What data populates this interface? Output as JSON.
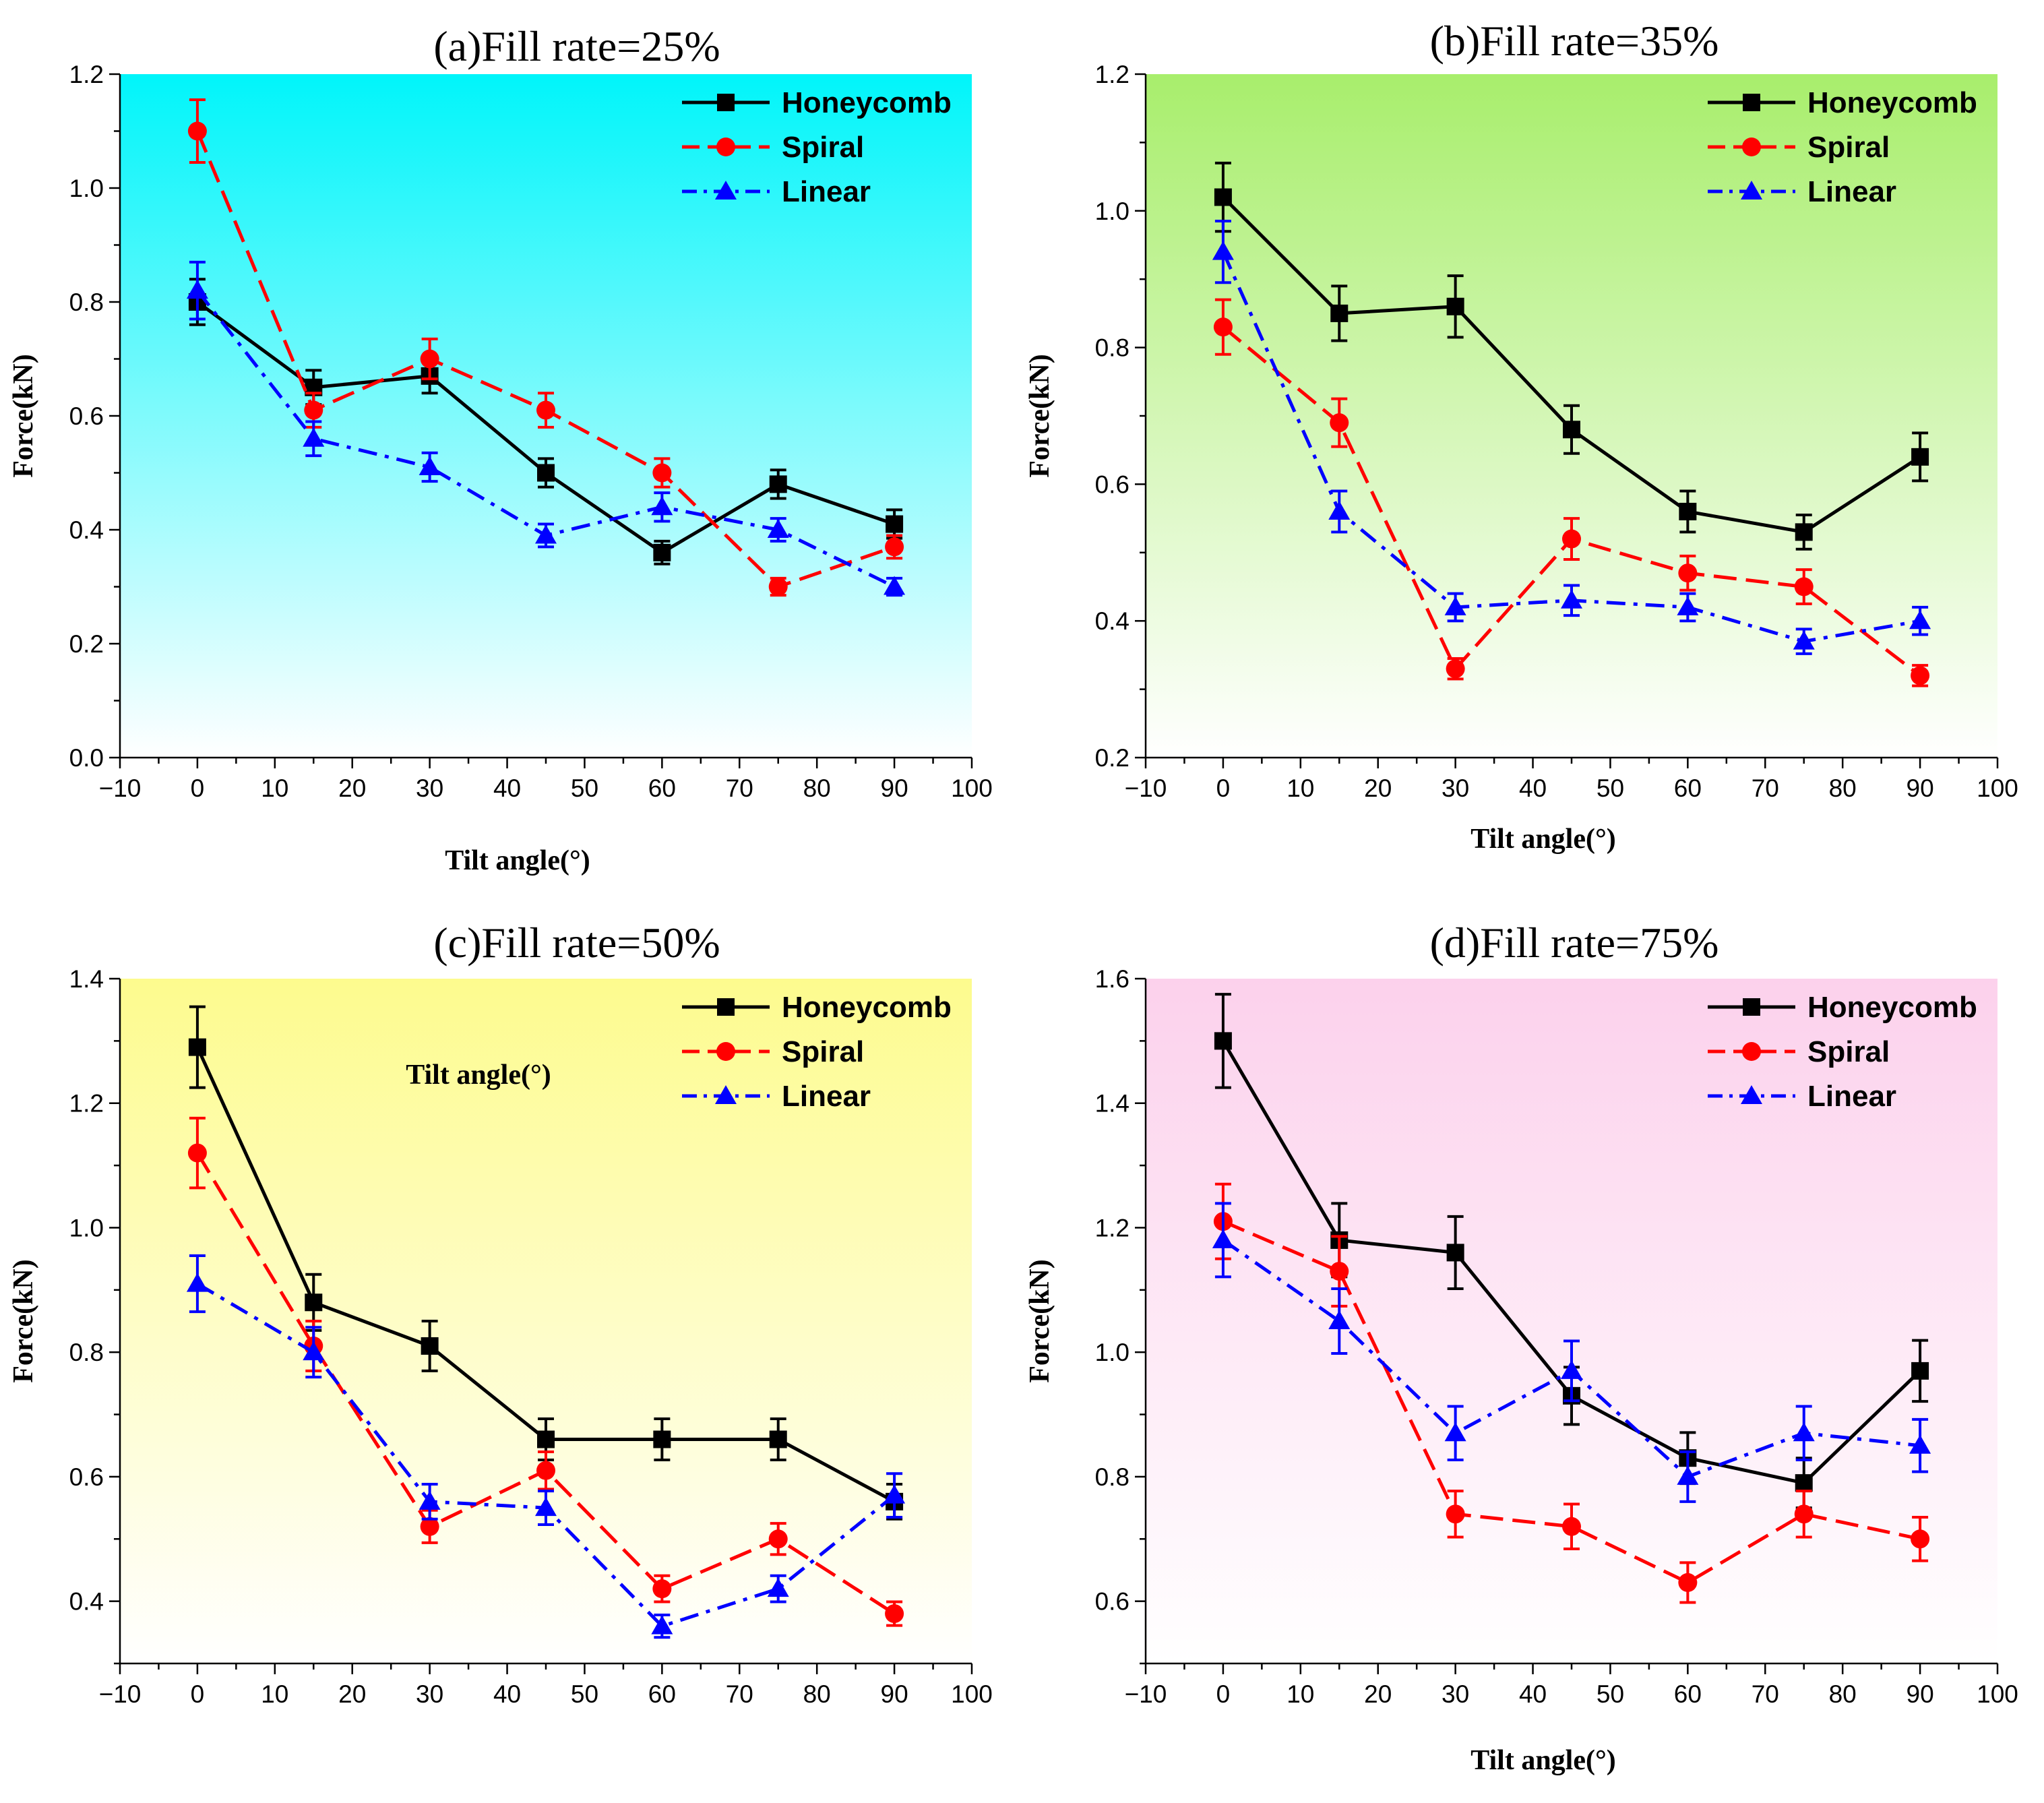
{
  "chart_data": [
    {
      "type": "line",
      "title": "(a)Fill rate=25%",
      "xlabel": "Tilt angle(°)",
      "ylabel": "Force(kN)",
      "xlim": [
        -10,
        100
      ],
      "ylim": [
        0.0,
        1.2
      ],
      "xticks": [
        "−10",
        "0",
        "10",
        "20",
        "30",
        "40",
        "50",
        "60",
        "70",
        "80",
        "90",
        "100"
      ],
      "yticks": [
        "0.0",
        "0.2",
        "0.4",
        "0.6",
        "0.8",
        "1.0",
        "1.2"
      ],
      "background": {
        "top": "#00f5fa",
        "bottom": "#ffffff"
      },
      "legend_position": "top-right",
      "x": [
        0,
        15,
        30,
        45,
        60,
        75,
        90
      ],
      "series": [
        {
          "name": "Honeycomb",
          "color": "#000000",
          "marker": "square",
          "style": "solid",
          "values": [
            0.8,
            0.65,
            0.67,
            0.5,
            0.36,
            0.48,
            0.41
          ],
          "errors": [
            0.04,
            0.03,
            0.03,
            0.025,
            0.02,
            0.025,
            0.025
          ]
        },
        {
          "name": "Spiral",
          "color": "#ff0000",
          "marker": "circle",
          "style": "dash",
          "values": [
            1.1,
            0.61,
            0.7,
            0.61,
            0.5,
            0.3,
            0.37
          ],
          "errors": [
            0.055,
            0.03,
            0.035,
            0.03,
            0.025,
            0.015,
            0.02
          ]
        },
        {
          "name": "Linear",
          "color": "#0000ff",
          "marker": "triangle",
          "style": "dashdot",
          "values": [
            0.82,
            0.56,
            0.51,
            0.39,
            0.44,
            0.4,
            0.3
          ],
          "errors": [
            0.05,
            0.03,
            0.025,
            0.02,
            0.025,
            0.02,
            0.015
          ]
        }
      ]
    },
    {
      "type": "line",
      "title": "(b)Fill rate=35%",
      "xlabel": "Tilt angle(°)",
      "ylabel": "Force(kN)",
      "xlim": [
        -10,
        100
      ],
      "ylim": [
        0.2,
        1.2
      ],
      "xticks": [
        "−10",
        "0",
        "10",
        "20",
        "30",
        "40",
        "50",
        "60",
        "70",
        "80",
        "90",
        "100"
      ],
      "yticks": [
        "0.2",
        "0.4",
        "0.6",
        "0.8",
        "1.0",
        "1.2"
      ],
      "background": {
        "top": "#a8ee6c",
        "bottom": "#ffffff"
      },
      "legend_position": "top-right",
      "x": [
        0,
        15,
        30,
        45,
        60,
        75,
        90
      ],
      "series": [
        {
          "name": "Honeycomb",
          "color": "#000000",
          "marker": "square",
          "style": "solid",
          "values": [
            1.02,
            0.85,
            0.86,
            0.68,
            0.56,
            0.53,
            0.64
          ],
          "errors": [
            0.05,
            0.04,
            0.045,
            0.035,
            0.03,
            0.025,
            0.035
          ]
        },
        {
          "name": "Spiral",
          "color": "#ff0000",
          "marker": "circle",
          "style": "dash",
          "values": [
            0.83,
            0.69,
            0.33,
            0.52,
            0.47,
            0.45,
            0.32
          ],
          "errors": [
            0.04,
            0.035,
            0.015,
            0.03,
            0.025,
            0.025,
            0.015
          ]
        },
        {
          "name": "Linear",
          "color": "#0000ff",
          "marker": "triangle",
          "style": "dashdot",
          "values": [
            0.94,
            0.56,
            0.42,
            0.43,
            0.42,
            0.37,
            0.4
          ],
          "errors": [
            0.045,
            0.03,
            0.02,
            0.022,
            0.02,
            0.018,
            0.02
          ]
        }
      ]
    },
    {
      "type": "line",
      "title": "(c)Fill rate=50%",
      "xlabel": "Tilt angle(°)",
      "ylabel": "Force(kN)",
      "xlim": [
        -10,
        100
      ],
      "ylim": [
        0.3,
        1.4
      ],
      "xticks": [
        "−10",
        "0",
        "10",
        "20",
        "30",
        "40",
        "50",
        "60",
        "70",
        "80",
        "90",
        "100"
      ],
      "yticks": [
        "0.4",
        "0.6",
        "0.8",
        "1.0",
        "1.2",
        "1.4"
      ],
      "background": {
        "top": "#fdfb8e",
        "bottom": "#ffffff"
      },
      "legend_position": "top-right",
      "x": [
        0,
        15,
        30,
        45,
        60,
        75,
        90
      ],
      "series": [
        {
          "name": "Honeycomb",
          "color": "#000000",
          "marker": "square",
          "style": "solid",
          "values": [
            1.29,
            0.88,
            0.81,
            0.66,
            0.66,
            0.66,
            0.56
          ],
          "errors": [
            0.065,
            0.045,
            0.04,
            0.033,
            0.033,
            0.033,
            0.028
          ]
        },
        {
          "name": "Spiral",
          "color": "#ff0000",
          "marker": "circle",
          "style": "dash",
          "values": [
            1.12,
            0.81,
            0.52,
            0.61,
            0.42,
            0.5,
            0.38
          ],
          "errors": [
            0.056,
            0.04,
            0.026,
            0.03,
            0.021,
            0.025,
            0.019
          ]
        },
        {
          "name": "Linear",
          "color": "#0000ff",
          "marker": "triangle",
          "style": "dashdot",
          "values": [
            0.91,
            0.8,
            0.56,
            0.55,
            0.36,
            0.42,
            0.57
          ],
          "errors": [
            0.045,
            0.04,
            0.028,
            0.027,
            0.018,
            0.021,
            0.035
          ]
        }
      ]
    },
    {
      "type": "line",
      "title": "(d)Fill rate=75%",
      "xlabel": "Tilt angle(°)",
      "ylabel": "Force(kN)",
      "xlim": [
        -10,
        100
      ],
      "ylim": [
        0.5,
        1.6
      ],
      "xticks": [
        "−10",
        "0",
        "10",
        "20",
        "30",
        "40",
        "50",
        "60",
        "70",
        "80",
        "90",
        "100"
      ],
      "yticks": [
        "0.6",
        "0.8",
        "1.0",
        "1.2",
        "1.4",
        "1.6"
      ],
      "background": {
        "top": "#fcd1ec",
        "bottom": "#ffffff"
      },
      "legend_position": "top-right",
      "x": [
        0,
        15,
        30,
        45,
        60,
        75,
        90
      ],
      "series": [
        {
          "name": "Honeycomb",
          "color": "#000000",
          "marker": "square",
          "style": "solid",
          "values": [
            1.5,
            1.18,
            1.16,
            0.93,
            0.83,
            0.79,
            0.97
          ],
          "errors": [
            0.075,
            0.059,
            0.058,
            0.046,
            0.041,
            0.04,
            0.049
          ]
        },
        {
          "name": "Spiral",
          "color": "#ff0000",
          "marker": "circle",
          "style": "dash",
          "values": [
            1.21,
            1.13,
            0.74,
            0.72,
            0.63,
            0.74,
            0.7
          ],
          "errors": [
            0.06,
            0.056,
            0.037,
            0.036,
            0.032,
            0.037,
            0.035
          ]
        },
        {
          "name": "Linear",
          "color": "#0000ff",
          "marker": "triangle",
          "style": "dashdot",
          "values": [
            1.18,
            1.05,
            0.87,
            0.97,
            0.8,
            0.87,
            0.85
          ],
          "errors": [
            0.059,
            0.052,
            0.043,
            0.048,
            0.04,
            0.043,
            0.042
          ]
        }
      ]
    }
  ]
}
